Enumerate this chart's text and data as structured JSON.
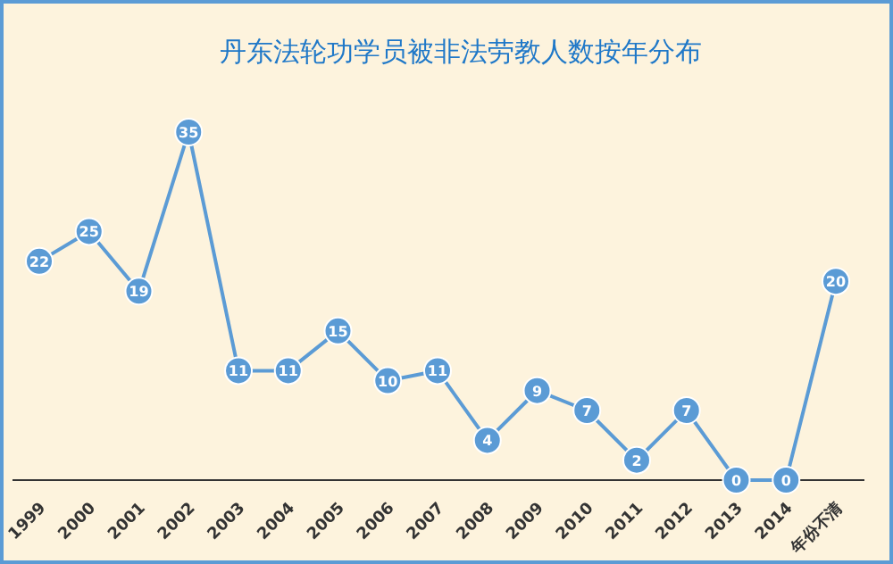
{
  "chart_data": {
    "type": "line",
    "title": "丹东法轮功学员被非法劳教人数按年分布",
    "categories": [
      "1999",
      "2000",
      "2001",
      "2002",
      "2003",
      "2004",
      "2005",
      "2006",
      "2007",
      "2008",
      "2009",
      "2010",
      "2011",
      "2012",
      "2013",
      "2014",
      "年份不清"
    ],
    "series": [
      {
        "color": "#5b9bd5",
        "values": [
          22,
          25,
          19,
          35,
          11,
          11,
          15,
          10,
          11,
          4,
          9,
          7,
          2,
          7,
          0,
          0,
          20
        ]
      }
    ],
    "data_labels": true,
    "marker": "circle",
    "line_style": "solid"
  }
}
